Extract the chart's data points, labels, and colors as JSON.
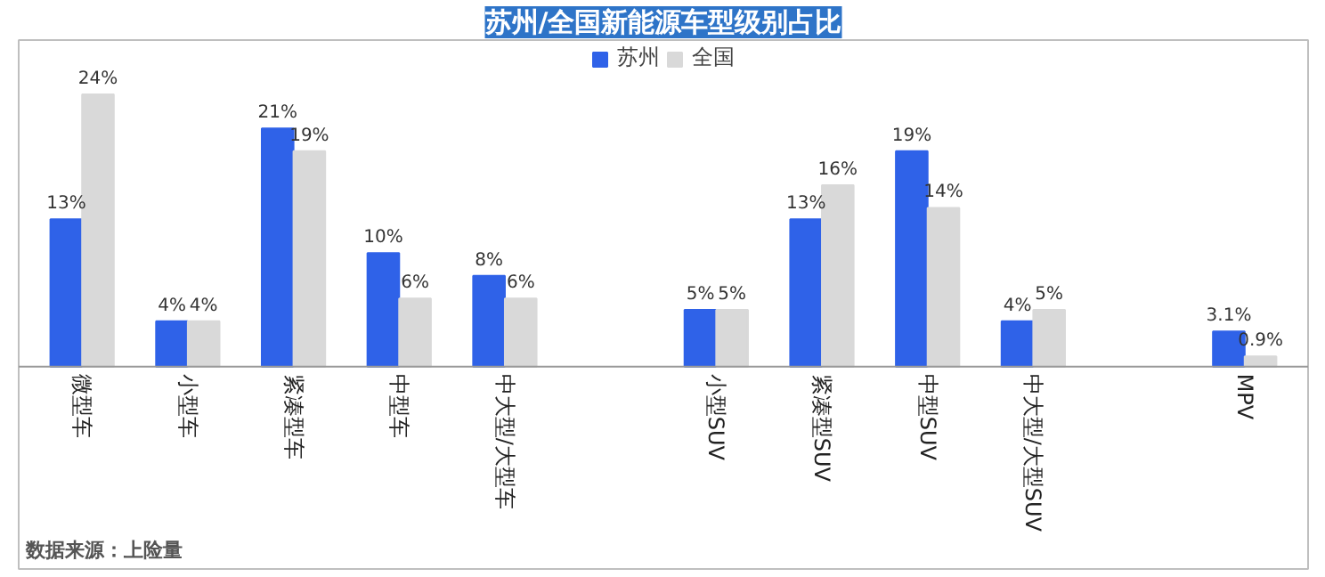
{
  "chart_data": {
    "type": "bar",
    "title": "苏州/全国新能源车型级别占比",
    "categories": [
      "微型车",
      "小型车",
      "紧凑型车",
      "中型车",
      "中大型/大型车",
      null,
      "小型SUV",
      "紧凑型SUV",
      "中型SUV",
      "中大型/大型SUV",
      null,
      "MPV"
    ],
    "series": [
      {
        "name": "苏州",
        "color": "#2f62e8",
        "values": [
          13,
          4,
          21,
          10,
          8,
          null,
          5,
          13,
          19,
          4,
          null,
          3.1
        ],
        "value_labels": [
          "13%",
          "4%",
          "21%",
          "10%",
          "8%",
          null,
          "5%",
          "13%",
          "19%",
          "4%",
          null,
          "3.1%"
        ]
      },
      {
        "name": "全国",
        "color": "#d9d9d9",
        "values": [
          24,
          4,
          19,
          6,
          6,
          null,
          5,
          16,
          14,
          5,
          null,
          0.9
        ],
        "value_labels": [
          "24%",
          "4%",
          "19%",
          "6%",
          "6%",
          null,
          "5%",
          "16%",
          "14%",
          "5%",
          null,
          "0.9%"
        ]
      }
    ],
    "legend": "top",
    "grid": false,
    "annotations": [
      "数据来源：上险量"
    ]
  }
}
